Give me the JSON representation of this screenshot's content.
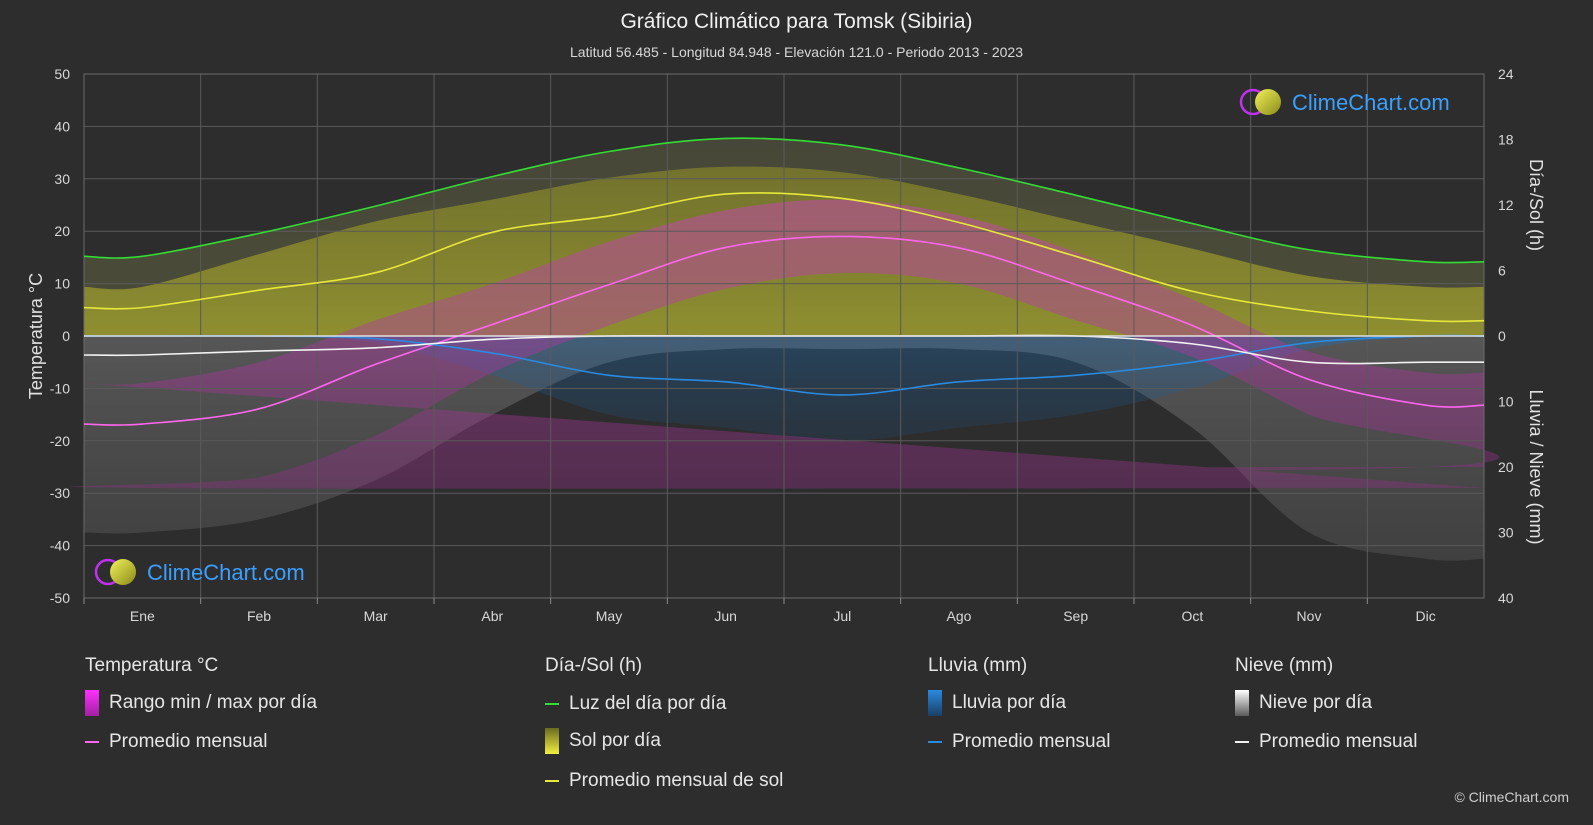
{
  "title": "Gráfico Climático para Tomsk (Sibiria)",
  "subtitle": "Latitud 56.485 - Longitud 84.948 - Elevación 121.0 - Periodo 2013 - 2023",
  "watermark": "ClimeChart.com",
  "copyright": "© ClimeChart.com",
  "colors": {
    "background": "#2d2d2d",
    "daylight": "#33dd33",
    "sunshine_line": "#e8e83a",
    "temp_avg": "#ff66ee",
    "rain_avg": "#2a8adf",
    "snow_avg": "#f2f2f2",
    "temp_range_fill": "#c040b0",
    "sun_fill": "#9a9a2a",
    "rain_fill": "#1f6fb5",
    "snow_fill": "#8a8a8a",
    "watermark_text": "#3aa0ff"
  },
  "legend": {
    "temp": {
      "header": "Temperatura °C",
      "items": [
        "Rango min / max por día",
        "Promedio mensual"
      ]
    },
    "sun": {
      "header": "Día-/Sol (h)",
      "items": [
        "Luz del día por día",
        "Sol por día",
        "Promedio mensual de sol"
      ]
    },
    "rain": {
      "header": "Lluvia (mm)",
      "items": [
        "Lluvia por día",
        "Promedio mensual"
      ]
    },
    "snow": {
      "header": "Nieve (mm)",
      "items": [
        "Nieve por día",
        "Promedio mensual"
      ]
    }
  },
  "chart_data": {
    "type": "line",
    "categories": [
      "Ene",
      "Feb",
      "Mar",
      "Abr",
      "May",
      "Jun",
      "Jul",
      "Ago",
      "Sep",
      "Oct",
      "Nov",
      "Dic"
    ],
    "y_left": {
      "label": "Temperatura °C",
      "range": [
        -50,
        50
      ],
      "ticks": [
        50,
        40,
        30,
        20,
        10,
        0,
        -10,
        -20,
        -30,
        -40,
        -50
      ]
    },
    "y_right_top": {
      "label": "Día-/Sol (h)",
      "range": [
        0,
        24
      ],
      "ticks": [
        24,
        18,
        12,
        6,
        0
      ]
    },
    "y_right_bottom": {
      "label": "Lluvia / Nieve (mm)",
      "range": [
        0,
        40
      ],
      "ticks": [
        10,
        20,
        30,
        40
      ]
    },
    "grid": true,
    "series": [
      {
        "name": "Luz del día por día",
        "axis": "hours",
        "values": [
          7.3,
          9.4,
          11.9,
          14.6,
          16.9,
          18.1,
          17.5,
          15.4,
          12.9,
          10.3,
          7.9,
          6.8
        ]
      },
      {
        "name": "Promedio mensual de sol",
        "axis": "hours",
        "values": [
          2.6,
          4.2,
          5.8,
          9.5,
          11.0,
          13.0,
          12.6,
          10.4,
          7.3,
          4.1,
          2.3,
          1.4
        ]
      },
      {
        "name": "Promedio mensual",
        "axis": "temp",
        "group": "temperature",
        "values": [
          -16.8,
          -13.9,
          -5.4,
          2.2,
          9.8,
          16.9,
          19.0,
          16.8,
          9.8,
          2.0,
          -8.3,
          -13.2
        ]
      },
      {
        "name": "Promedio mensual",
        "axis": "mm",
        "group": "rain",
        "values": [
          0.0,
          0.0,
          0.4,
          2.6,
          6.0,
          7.0,
          9.0,
          7.0,
          6.0,
          4.0,
          1.0,
          0.0
        ]
      },
      {
        "name": "Promedio mensual",
        "axis": "mm",
        "group": "snow",
        "values": [
          2.9,
          2.3,
          1.8,
          0.5,
          0.0,
          0.0,
          0.0,
          0.0,
          0.0,
          1.2,
          4.0,
          4.0
        ]
      }
    ],
    "daily_bands": {
      "temp_min": [
        -29,
        -27,
        -19,
        -7,
        2,
        9,
        12,
        10,
        3,
        -4,
        -15,
        -25
      ],
      "temp_max": [
        -9,
        -5,
        3,
        10,
        18,
        24,
        26,
        23,
        16,
        7,
        -3,
        -7
      ],
      "sunshine_hours": [
        4.5,
        7.5,
        10.5,
        12.5,
        14.5,
        15.5,
        15.0,
        13.0,
        10.5,
        8.0,
        5.5,
        4.5
      ]
    }
  }
}
